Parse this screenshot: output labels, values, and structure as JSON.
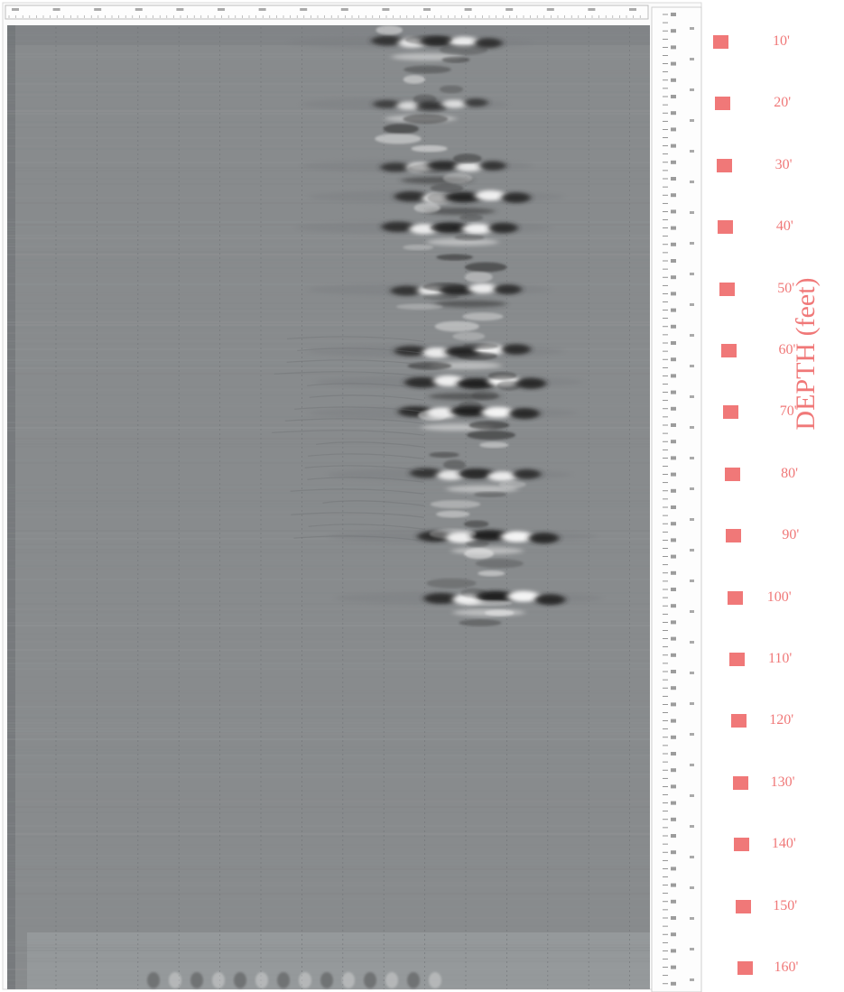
{
  "chart_data": {
    "type": "heatmap",
    "ylabel": "DEPTH (feet)",
    "y_unit": "feet",
    "y_reversed": true,
    "y_ticks": [
      "10'",
      "20'",
      "30'",
      "40'",
      "50'",
      "60'",
      "70'",
      "80'",
      "90'",
      "100'",
      "110'",
      "120'",
      "130'",
      "140'",
      "150'",
      "160'"
    ],
    "y_tick_values": [
      10,
      20,
      30,
      40,
      50,
      60,
      70,
      80,
      90,
      100,
      110,
      120,
      130,
      140,
      150,
      160
    ],
    "colorscale": "grayscale",
    "grid": true,
    "reflectors": [
      {
        "depth": 10,
        "x": 0.67,
        "strength": 0.8
      },
      {
        "depth": 20,
        "x": 0.66,
        "strength": 0.5
      },
      {
        "depth": 30,
        "x": 0.68,
        "strength": 0.7
      },
      {
        "depth": 35,
        "x": 0.71,
        "strength": 0.9
      },
      {
        "depth": 40,
        "x": 0.69,
        "strength": 0.9
      },
      {
        "depth": 50,
        "x": 0.7,
        "strength": 0.8
      },
      {
        "depth": 60,
        "x": 0.71,
        "strength": 0.9
      },
      {
        "depth": 65,
        "x": 0.73,
        "strength": 1.0
      },
      {
        "depth": 70,
        "x": 0.72,
        "strength": 1.0
      },
      {
        "depth": 80,
        "x": 0.73,
        "strength": 0.8
      },
      {
        "depth": 90,
        "x": 0.75,
        "strength": 1.0
      },
      {
        "depth": 100,
        "x": 0.76,
        "strength": 1.0
      }
    ]
  },
  "colors": {
    "background": "#ffffff",
    "scan_gray": "#878a8c",
    "accent": "#f07878"
  }
}
